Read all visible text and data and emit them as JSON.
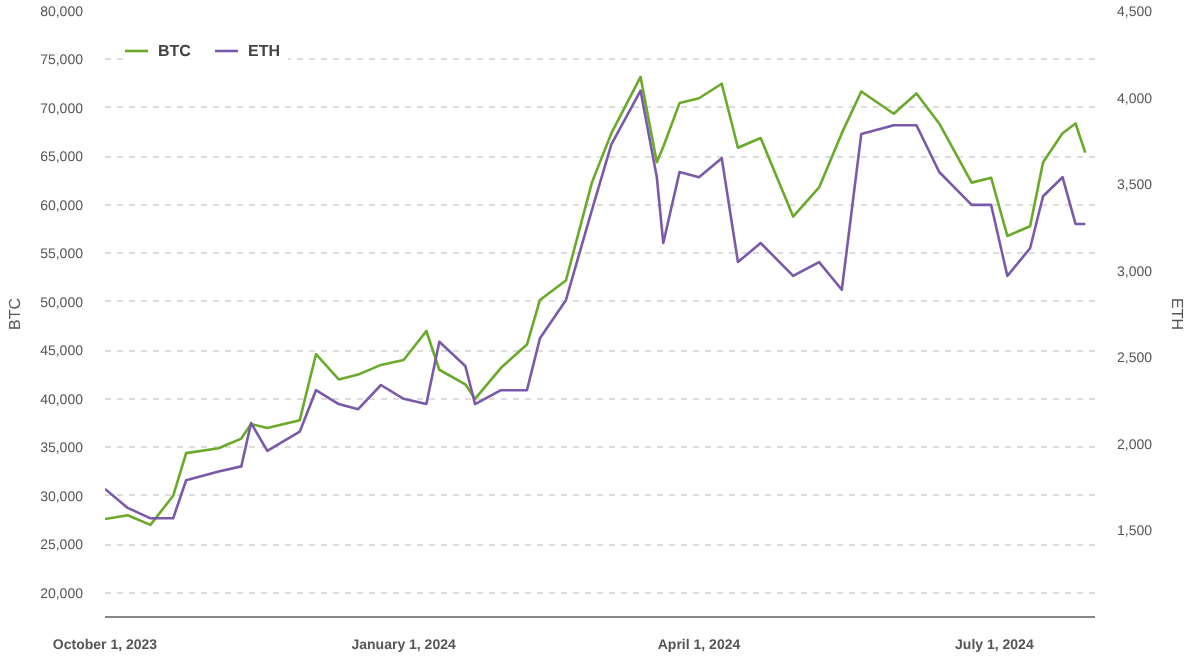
{
  "chart_data": {
    "type": "line",
    "x": [
      "2023-10-01",
      "2023-10-08",
      "2023-10-15",
      "2023-10-22",
      "2023-10-26",
      "2023-11-05",
      "2023-11-12",
      "2023-11-15",
      "2023-11-20",
      "2023-11-30",
      "2023-12-05",
      "2023-12-12",
      "2023-12-18",
      "2023-12-25",
      "2024-01-01",
      "2024-01-08",
      "2024-01-12",
      "2024-01-20",
      "2024-01-23",
      "2024-01-31",
      "2024-02-08",
      "2024-02-12",
      "2024-02-20",
      "2024-02-28",
      "2024-03-05",
      "2024-03-14",
      "2024-03-19",
      "2024-03-21",
      "2024-03-26",
      "2024-04-01",
      "2024-04-08",
      "2024-04-13",
      "2024-04-20",
      "2024-04-30",
      "2024-05-08",
      "2024-05-15",
      "2024-05-21",
      "2024-05-31",
      "2024-06-07",
      "2024-06-14",
      "2024-06-24",
      "2024-06-30",
      "2024-07-05",
      "2024-07-12",
      "2024-07-16",
      "2024-07-22",
      "2024-07-26",
      "2024-07-29"
    ],
    "series": [
      {
        "name": "BTC",
        "color": "#6aaa2a",
        "values": [
          27600,
          28000,
          27000,
          30000,
          34400,
          34900,
          35900,
          37400,
          37000,
          37800,
          44600,
          42000,
          42500,
          43500,
          44000,
          47000,
          43000,
          41500,
          40000,
          43200,
          45600,
          50200,
          52200,
          62300,
          67400,
          73200,
          64400,
          66000,
          70500,
          71000,
          72500,
          65900,
          66900,
          58800,
          61800,
          67400,
          71700,
          69400,
          71500,
          68400,
          62300,
          62800,
          56800,
          57800,
          64400,
          67400,
          68400,
          65400
        ]
      },
      {
        "name": "ETH",
        "color": "#7a5aa8",
        "axis": "y2",
        "values": [
          1740,
          1630,
          1570,
          1570,
          1790,
          1840,
          1870,
          2120,
          1960,
          2070,
          2310,
          2230,
          2200,
          2340,
          2260,
          2230,
          2590,
          2450,
          2230,
          2310,
          2310,
          2610,
          2830,
          3350,
          3730,
          4040,
          3540,
          3160,
          3570,
          3540,
          3650,
          3050,
          3160,
          2970,
          3050,
          2890,
          3790,
          3840,
          3840,
          3570,
          3380,
          3380,
          2970,
          3130,
          3430,
          3540,
          3270,
          3270
        ]
      }
    ],
    "ylabel": "BTC",
    "y2label": "ETH",
    "xlim": [
      "2023-10-01",
      "2024-08-01"
    ],
    "xticks": [
      {
        "value": "2023-10-01",
        "label": "October 1, 2023"
      },
      {
        "value": "2024-01-01",
        "label": "January 1, 2024"
      },
      {
        "value": "2024-04-01",
        "label": "April 1, 2024"
      },
      {
        "value": "2024-07-01",
        "label": "July 1, 2024"
      }
    ],
    "ylim": [
      17500,
      80000
    ],
    "yticks": [
      {
        "value": 20000,
        "label": "20,000"
      },
      {
        "value": 25000,
        "label": "25,000"
      },
      {
        "value": 30000,
        "label": "30,000"
      },
      {
        "value": 35000,
        "label": "35,000"
      },
      {
        "value": 40000,
        "label": "40,000"
      },
      {
        "value": 45000,
        "label": "45,000"
      },
      {
        "value": 50000,
        "label": "50,000"
      },
      {
        "value": 55000,
        "label": "55,000"
      },
      {
        "value": 60000,
        "label": "60,000"
      },
      {
        "value": 65000,
        "label": "65,000"
      },
      {
        "value": 70000,
        "label": "70,000"
      },
      {
        "value": 75000,
        "label": "75,000"
      },
      {
        "value": 80000,
        "label": "80,000"
      }
    ],
    "y2lim": [
      1000,
      4500
    ],
    "y2ticks": [
      {
        "value": 1500,
        "label": "1,500"
      },
      {
        "value": 2000,
        "label": "2,000"
      },
      {
        "value": 2500,
        "label": "2,500"
      },
      {
        "value": 3000,
        "label": "3,000"
      },
      {
        "value": 3500,
        "label": "3,500"
      },
      {
        "value": 4000,
        "label": "4,000"
      },
      {
        "value": 4500,
        "label": "4,500"
      }
    ],
    "grid": "y",
    "legend": "top left",
    "line_style": "solid"
  }
}
